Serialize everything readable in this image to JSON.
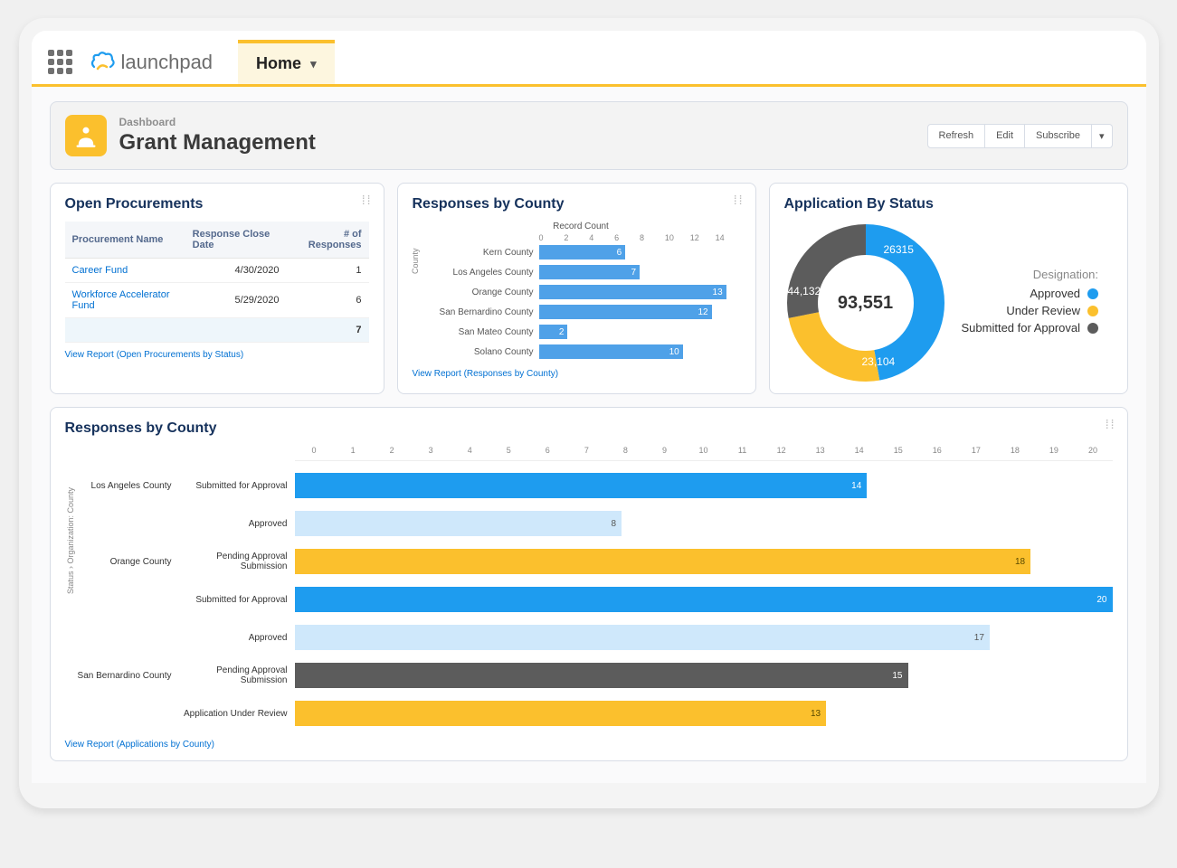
{
  "topbar": {
    "brand": "launchpad",
    "tab_label": "Home"
  },
  "header": {
    "breadcrumb": "Dashboard",
    "title": "Grant Management",
    "actions": {
      "refresh": "Refresh",
      "edit": "Edit",
      "subscribe": "Subscribe"
    }
  },
  "procurements": {
    "title": "Open Procurements",
    "columns": [
      "Procurement Name",
      "Response Close Date",
      "# of Responses"
    ],
    "rows": [
      {
        "name": "Career Fund",
        "date": "4/30/2020",
        "count": 1
      },
      {
        "name": "Workforce Accelerator Fund",
        "date": "5/29/2020",
        "count": 6
      }
    ],
    "total": 7,
    "view_link": "View Report (Open Procurements by Status)"
  },
  "responses_chart": {
    "title": "Responses by County",
    "axis_title": "Record Count",
    "y_axis": "County",
    "xmax": 14,
    "ticks": [
      0,
      2,
      4,
      6,
      8,
      10,
      12,
      14
    ],
    "bar_color": "#4fa1e8",
    "data": [
      {
        "label": "Kern County",
        "value": 6
      },
      {
        "label": "Los Angeles County",
        "value": 7
      },
      {
        "label": "Orange County",
        "value": 13
      },
      {
        "label": "San Bernardino County",
        "value": 12
      },
      {
        "label": "San Mateo County",
        "value": 2
      },
      {
        "label": "Solano County",
        "value": 10
      }
    ],
    "view_link": "View Report (Responses by County)"
  },
  "donut": {
    "title": "Application By Status",
    "legend_title": "Designation:",
    "total": "93,551",
    "segments": [
      {
        "label": "Approved",
        "value": 44132,
        "display": "44,132",
        "color": "#1e9cef"
      },
      {
        "label": "Under Review",
        "value": 23104,
        "display": "23,104",
        "color": "#fbc02d"
      },
      {
        "label": "Submitted for Approval",
        "value": 26315,
        "display": "26315",
        "color": "#5c5c5c"
      }
    ]
  },
  "big_chart": {
    "title": "Responses by County",
    "y_axis": "Status › Organization: County",
    "xmax": 20,
    "ticks": [
      0,
      1,
      2,
      3,
      4,
      5,
      6,
      7,
      8,
      9,
      10,
      11,
      12,
      13,
      14,
      15,
      16,
      17,
      18,
      19,
      20
    ],
    "colors": {
      "Submitted for Approval": "#1e9cef",
      "Approved": "#cfe8fb",
      "Pending Approval Submission": "#fbc02d",
      "Application Under Review": "#fbc02d",
      "Pending Approval Submission (dark)": "#5c5c5c"
    },
    "rows": [
      {
        "county": "Los Angeles County",
        "status": "Submitted for Approval",
        "value": 14,
        "color": "#1e9cef",
        "text": "#fff"
      },
      {
        "county": "",
        "status": "Approved",
        "value": 8,
        "color": "#cfe8fb",
        "text": "#555"
      },
      {
        "county": "Orange County",
        "status": "Pending Approval Submission",
        "value": 18,
        "color": "#fbc02d",
        "text": "#5a4a00"
      },
      {
        "county": "",
        "status": "Submitted for Approval",
        "value": 20,
        "color": "#1e9cef",
        "text": "#fff"
      },
      {
        "county": "",
        "status": "Approved",
        "value": 17,
        "color": "#cfe8fb",
        "text": "#555"
      },
      {
        "county": "San Bernardino County",
        "status": "Pending Approval Submission",
        "value": 15,
        "color": "#5c5c5c",
        "text": "#fff"
      },
      {
        "county": "",
        "status": "Application Under Review",
        "value": 13,
        "color": "#fbc02d",
        "text": "#5a4a00"
      }
    ],
    "view_link": "View Report (Applications by County)"
  }
}
